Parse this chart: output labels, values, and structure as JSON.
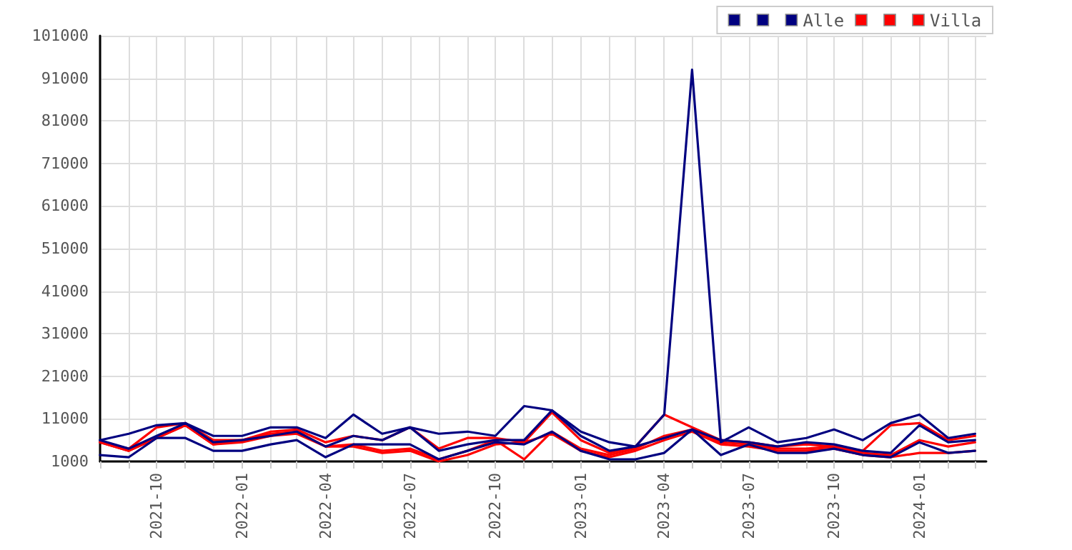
{
  "chart_data": {
    "type": "line",
    "x": [
      "2021-08",
      "2021-09",
      "2021-10",
      "2021-11",
      "2021-12",
      "2022-01",
      "2022-02",
      "2022-03",
      "2022-04",
      "2022-05",
      "2022-06",
      "2022-07",
      "2022-08",
      "2022-09",
      "2022-10",
      "2022-11",
      "2022-12",
      "2023-01",
      "2023-02",
      "2023-03",
      "2023-04",
      "2023-05",
      "2023-06",
      "2023-07",
      "2023-08",
      "2023-09",
      "2023-10",
      "2023-11",
      "2023-12",
      "2024-01",
      "2024-02",
      "2024-03"
    ],
    "series": [
      {
        "color": "#000080",
        "values": [
          6000,
          7500,
          9500,
          10000,
          7000,
          7000,
          9000,
          9000,
          6500,
          12000,
          7500,
          9000,
          7500,
          8000,
          7000,
          14000,
          13000,
          8000,
          5500,
          4500,
          12000,
          93000,
          5500,
          9000,
          5500,
          6500,
          8500,
          6000,
          10000,
          12000,
          6500,
          7500
        ]
      },
      {
        "color": "#000080",
        "values": [
          6000,
          4000,
          7000,
          10000,
          5500,
          6000,
          7000,
          8000,
          4500,
          7000,
          6000,
          9000,
          3500,
          5000,
          6000,
          6000,
          13000,
          7000,
          3500,
          4500,
          6500,
          8500,
          6000,
          5500,
          4500,
          5500,
          5000,
          3500,
          3000,
          9500,
          5500,
          6000
        ]
      },
      {
        "name": "Alle",
        "color": "#000080",
        "values": [
          2500,
          2000,
          6500,
          6500,
          3500,
          3500,
          5000,
          6000,
          2000,
          5000,
          5000,
          5000,
          1500,
          3500,
          5500,
          5000,
          8000,
          3500,
          1500,
          1500,
          3000,
          8500,
          2500,
          5000,
          3000,
          3000,
          4000,
          2500,
          2000,
          5500,
          3000,
          3500
        ]
      },
      {
        "color": "#ff0000",
        "values": [
          5500,
          4000,
          9000,
          10000,
          6000,
          6000,
          8000,
          8500,
          5500,
          7000,
          6000,
          9000,
          4000,
          6500,
          6500,
          5500,
          12500,
          6000,
          3000,
          4500,
          12000,
          9000,
          6000,
          5500,
          4500,
          5000,
          4500,
          3500,
          9500,
          10000,
          6000,
          7000
        ]
      },
      {
        "color": "#ff0000",
        "values": [
          5500,
          3500,
          6500,
          9500,
          5000,
          6000,
          7500,
          8000,
          4500,
          5000,
          3500,
          4000,
          1500,
          3500,
          6000,
          1500,
          8000,
          4000,
          2500,
          4000,
          7000,
          8500,
          5500,
          5000,
          4000,
          4000,
          4500,
          3000,
          2500,
          6000,
          4500,
          5500
        ]
      },
      {
        "name": "Villa",
        "color": "#ff0000",
        "values": [
          5500,
          3500,
          6500,
          9500,
          5000,
          5500,
          7000,
          7500,
          4500,
          4500,
          3000,
          3500,
          1000,
          2500,
          5000,
          5500,
          7500,
          3500,
          2000,
          3500,
          6000,
          8000,
          5000,
          4500,
          3500,
          3500,
          4000,
          2500,
          2000,
          3000,
          3000,
          3500
        ]
      }
    ],
    "xlim": [
      "2021-08-01",
      "2024-03-13"
    ],
    "xticks": [
      {
        "value": "2021-08",
        "label": null
      },
      {
        "value": "2021-09",
        "label": null
      },
      "2021-10",
      {
        "value": "2021-11",
        "label": null
      },
      {
        "value": "2021-12",
        "label": null
      },
      "2022-01",
      {
        "value": "2022-02",
        "label": null
      },
      {
        "value": "2022-03",
        "label": null
      },
      "2022-04",
      {
        "value": "2022-05",
        "label": null
      },
      {
        "value": "2022-06",
        "label": null
      },
      "2022-07",
      {
        "value": "2022-08",
        "label": null
      },
      {
        "value": "2022-09",
        "label": null
      },
      "2022-10",
      {
        "value": "2022-11",
        "label": null
      },
      {
        "value": "2022-12",
        "label": null
      },
      "2023-01",
      {
        "value": "2023-02",
        "label": null
      },
      {
        "value": "2023-03",
        "label": null
      },
      "2023-04",
      {
        "value": "2023-05",
        "label": null
      },
      {
        "value": "2023-06",
        "label": null
      },
      "2023-07",
      {
        "value": "2023-08",
        "label": null
      },
      {
        "value": "2023-09",
        "label": null
      },
      "2023-10",
      {
        "value": "2023-11",
        "label": null
      },
      {
        "value": "2023-12",
        "label": null
      },
      "2024-01",
      {
        "value": "2024-02",
        "label": null
      },
      {
        "value": "2024-03",
        "label": null
      }
    ],
    "ylim": [
      1000,
      101000
    ],
    "yticks": [
      1000,
      11000,
      21000,
      31000,
      41000,
      51000,
      61000,
      71000,
      81000,
      91000,
      101000
    ],
    "grid": true,
    "legend": "top right",
    "marker": "none",
    "line_style": "solid"
  }
}
